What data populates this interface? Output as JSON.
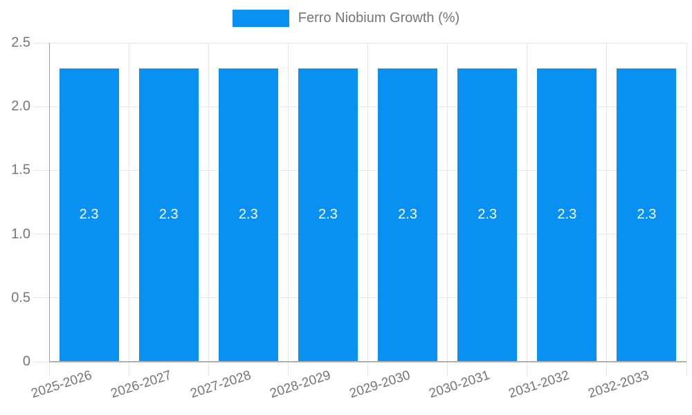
{
  "chart_data": {
    "type": "bar",
    "legend": "Ferro Niobium Growth (%)",
    "legend_position": "top-center",
    "categories": [
      "2025-2026",
      "2026-2027",
      "2027-2028",
      "2028-2029",
      "2029-2030",
      "2030-2031",
      "2031-2032",
      "2032-2033"
    ],
    "values": [
      2.3,
      2.3,
      2.3,
      2.3,
      2.3,
      2.3,
      2.3,
      2.3
    ],
    "bar_value_labels": [
      "2.3",
      "2.3",
      "2.3",
      "2.3",
      "2.3",
      "2.3",
      "2.3",
      "2.3"
    ],
    "xlabel": "",
    "ylabel": "",
    "ylim": [
      0,
      2.5
    ],
    "yticks": [
      0,
      0.5,
      1.0,
      1.5,
      2.0,
      2.5
    ],
    "ytick_labels": [
      "0",
      "0.5",
      "1.0",
      "1.5",
      "2.0",
      "2.5"
    ],
    "grid": true,
    "colors": {
      "bar": "#0991f2",
      "grid": "#e6e6e6",
      "axis_text": "#757575",
      "value_label_text": "#ffffff"
    }
  }
}
